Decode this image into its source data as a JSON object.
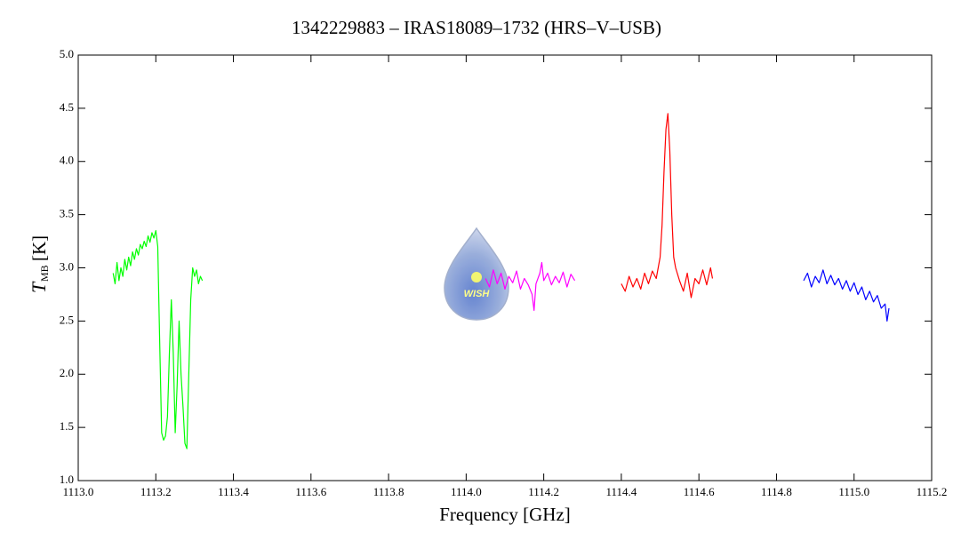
{
  "chart_data": {
    "type": "line",
    "title": "1342229883 – IRAS18089–1732 (HRS–V–USB)",
    "xlabel": "Frequency [GHz]",
    "ylabel": "T",
    "ylabel_sub": "MB",
    "ylabel_unit": "[K]",
    "logo_text": "WISH",
    "xlim": [
      1113.0,
      1115.2
    ],
    "xticks": [
      {
        "value": 1113.0,
        "label": "1113.0"
      },
      1113.2,
      1113.4,
      1113.6,
      1113.8,
      {
        "value": 1114.0,
        "label": "1114.0"
      },
      1114.2,
      1114.4,
      1114.6,
      1114.8,
      {
        "value": 1115.0,
        "label": "1115.0"
      },
      1115.2
    ],
    "ylim": [
      1.0,
      5.0
    ],
    "yticks": [
      {
        "value": 1.0,
        "label": "1.0"
      },
      1.5,
      {
        "value": 2.0,
        "label": "2.0"
      },
      2.5,
      {
        "value": 3.0,
        "label": "3.0"
      },
      3.5,
      {
        "value": 4.0,
        "label": "4.0"
      },
      4.5,
      {
        "value": 5.0,
        "label": "5.0"
      }
    ],
    "series": [
      {
        "color": "#00ff00",
        "x": [
          1113.09,
          1113.095,
          1113.1,
          1113.105,
          1113.11,
          1113.115,
          1113.12,
          1113.125,
          1113.13,
          1113.135,
          1113.14,
          1113.145,
          1113.15,
          1113.155,
          1113.16,
          1113.165,
          1113.17,
          1113.175,
          1113.18,
          1113.185,
          1113.19,
          1113.195,
          1113.2,
          1113.205,
          1113.21,
          1113.215,
          1113.22,
          1113.225,
          1113.23,
          1113.235,
          1113.24,
          1113.245,
          1113.25,
          1113.255,
          1113.26,
          1113.265,
          1113.27,
          1113.275,
          1113.28,
          1113.285,
          1113.29,
          1113.295,
          1113.3,
          1113.305,
          1113.31,
          1113.315,
          1113.32
        ],
        "values": [
          2.95,
          2.85,
          3.05,
          2.88,
          3.0,
          2.92,
          3.08,
          2.98,
          3.1,
          3.02,
          3.15,
          3.08,
          3.18,
          3.12,
          3.22,
          3.18,
          3.25,
          3.2,
          3.3,
          3.24,
          3.33,
          3.28,
          3.35,
          3.2,
          2.3,
          1.45,
          1.38,
          1.42,
          1.6,
          2.2,
          2.7,
          2.2,
          1.45,
          1.9,
          2.5,
          2.0,
          1.7,
          1.35,
          1.3,
          2.0,
          2.7,
          3.0,
          2.92,
          2.98,
          2.85,
          2.92,
          2.88
        ]
      },
      {
        "color": "#ff00ff",
        "x": [
          1114.05,
          1114.06,
          1114.07,
          1114.08,
          1114.09,
          1114.1,
          1114.11,
          1114.12,
          1114.13,
          1114.14,
          1114.15,
          1114.16,
          1114.17,
          1114.175,
          1114.18,
          1114.19,
          1114.195,
          1114.2,
          1114.21,
          1114.22,
          1114.23,
          1114.24,
          1114.25,
          1114.26,
          1114.27,
          1114.28
        ],
        "values": [
          2.9,
          2.82,
          2.98,
          2.85,
          2.95,
          2.8,
          2.92,
          2.86,
          2.97,
          2.8,
          2.9,
          2.84,
          2.75,
          2.6,
          2.85,
          2.95,
          3.05,
          2.88,
          2.95,
          2.84,
          2.92,
          2.86,
          2.96,
          2.82,
          2.94,
          2.88
        ]
      },
      {
        "color": "#ff0000",
        "x": [
          1114.4,
          1114.41,
          1114.42,
          1114.43,
          1114.44,
          1114.45,
          1114.46,
          1114.47,
          1114.48,
          1114.49,
          1114.5,
          1114.505,
          1114.51,
          1114.515,
          1114.52,
          1114.525,
          1114.53,
          1114.535,
          1114.54,
          1114.55,
          1114.56,
          1114.57,
          1114.58,
          1114.59,
          1114.6,
          1114.61,
          1114.62,
          1114.63,
          1114.635
        ],
        "values": [
          2.85,
          2.78,
          2.92,
          2.82,
          2.9,
          2.8,
          2.95,
          2.85,
          2.97,
          2.9,
          3.1,
          3.4,
          3.9,
          4.3,
          4.45,
          4.1,
          3.5,
          3.1,
          3.0,
          2.88,
          2.78,
          2.95,
          2.72,
          2.9,
          2.85,
          2.98,
          2.84,
          3.0,
          2.9
        ]
      },
      {
        "color": "#0000ff",
        "x": [
          1114.87,
          1114.88,
          1114.89,
          1114.9,
          1114.91,
          1114.92,
          1114.93,
          1114.94,
          1114.95,
          1114.96,
          1114.97,
          1114.98,
          1114.99,
          1115.0,
          1115.01,
          1115.02,
          1115.03,
          1115.04,
          1115.05,
          1115.06,
          1115.07,
          1115.08,
          1115.085,
          1115.09
        ],
        "values": [
          2.88,
          2.95,
          2.82,
          2.92,
          2.86,
          2.98,
          2.85,
          2.93,
          2.84,
          2.9,
          2.8,
          2.88,
          2.78,
          2.86,
          2.75,
          2.82,
          2.7,
          2.78,
          2.68,
          2.74,
          2.62,
          2.66,
          2.5,
          2.62
        ]
      }
    ]
  }
}
